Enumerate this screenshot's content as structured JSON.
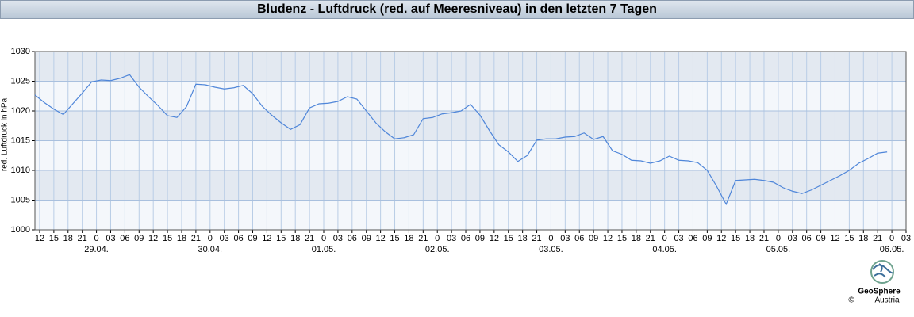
{
  "chart_data": {
    "type": "line",
    "title": "Bludenz - Luftdruck (red. auf Meeresniveau) in den letzten 7 Tagen",
    "ylabel": "red. Luftdruck in hPa",
    "logo": {
      "name": "GeoSphere",
      "sub": "Austria",
      "copyright": "©"
    },
    "color": "#4f86d9",
    "grid": true,
    "ylim": [
      1000,
      1030
    ],
    "yticks": [
      1000,
      1005,
      1010,
      1015,
      1020,
      1025,
      1030
    ],
    "xlim": [
      "28.04. 11",
      "06.05. 03"
    ],
    "xticks": [
      {
        "value": "28.04. 12",
        "label": "12"
      },
      {
        "value": "28.04. 15",
        "label": "15"
      },
      {
        "value": "28.04. 18",
        "label": "18"
      },
      {
        "value": "28.04. 21",
        "label": "21"
      },
      {
        "value": "29.04. 00",
        "label": "0"
      },
      {
        "value": "29.04. 03",
        "label": "03"
      },
      {
        "value": "29.04. 06",
        "label": "06"
      },
      {
        "value": "29.04. 09",
        "label": "09"
      },
      {
        "value": "29.04. 12",
        "label": "12"
      },
      {
        "value": "29.04. 15",
        "label": "15"
      },
      {
        "value": "29.04. 18",
        "label": "18"
      },
      {
        "value": "29.04. 21",
        "label": "21"
      },
      {
        "value": "30.04. 00",
        "label": "0"
      },
      {
        "value": "30.04. 03",
        "label": "03"
      },
      {
        "value": "30.04. 06",
        "label": "06"
      },
      {
        "value": "30.04. 09",
        "label": "09"
      },
      {
        "value": "30.04. 12",
        "label": "12"
      },
      {
        "value": "30.04. 15",
        "label": "15"
      },
      {
        "value": "30.04. 18",
        "label": "18"
      },
      {
        "value": "30.04. 21",
        "label": "21"
      },
      {
        "value": "01.05. 00",
        "label": "0"
      },
      {
        "value": "01.05. 03",
        "label": "03"
      },
      {
        "value": "01.05. 06",
        "label": "06"
      },
      {
        "value": "01.05. 09",
        "label": "09"
      },
      {
        "value": "01.05. 12",
        "label": "12"
      },
      {
        "value": "01.05. 15",
        "label": "15"
      },
      {
        "value": "01.05. 18",
        "label": "18"
      },
      {
        "value": "01.05. 21",
        "label": "21"
      },
      {
        "value": "02.05. 00",
        "label": "0"
      },
      {
        "value": "02.05. 03",
        "label": "03"
      },
      {
        "value": "02.05. 06",
        "label": "06"
      },
      {
        "value": "02.05. 09",
        "label": "09"
      },
      {
        "value": "02.05. 12",
        "label": "12"
      },
      {
        "value": "02.05. 15",
        "label": "15"
      },
      {
        "value": "02.05. 18",
        "label": "18"
      },
      {
        "value": "02.05. 21",
        "label": "21"
      },
      {
        "value": "03.05. 00",
        "label": "0"
      },
      {
        "value": "03.05. 03",
        "label": "03"
      },
      {
        "value": "03.05. 06",
        "label": "06"
      },
      {
        "value": "03.05. 09",
        "label": "09"
      },
      {
        "value": "03.05. 12",
        "label": "12"
      },
      {
        "value": "03.05. 15",
        "label": "15"
      },
      {
        "value": "03.05. 18",
        "label": "18"
      },
      {
        "value": "03.05. 21",
        "label": "21"
      },
      {
        "value": "04.05. 00",
        "label": "0"
      },
      {
        "value": "04.05. 03",
        "label": "03"
      },
      {
        "value": "04.05. 06",
        "label": "06"
      },
      {
        "value": "04.05. 09",
        "label": "09"
      },
      {
        "value": "04.05. 12",
        "label": "12"
      },
      {
        "value": "04.05. 15",
        "label": "15"
      },
      {
        "value": "04.05. 18",
        "label": "18"
      },
      {
        "value": "04.05. 21",
        "label": "21"
      },
      {
        "value": "05.05. 00",
        "label": "0"
      },
      {
        "value": "05.05. 03",
        "label": "03"
      },
      {
        "value": "05.05. 06",
        "label": "06"
      },
      {
        "value": "05.05. 09",
        "label": "09"
      },
      {
        "value": "05.05. 12",
        "label": "12"
      },
      {
        "value": "05.05. 15",
        "label": "15"
      },
      {
        "value": "05.05. 18",
        "label": "18"
      },
      {
        "value": "05.05. 21",
        "label": "21"
      },
      {
        "value": "06.05. 00",
        "label": "0"
      },
      {
        "value": "06.05. 03",
        "label": "03"
      }
    ],
    "date_labels": [
      {
        "value": "29.04. 00",
        "label": "29.04."
      },
      {
        "value": "30.04. 00",
        "label": "30.04."
      },
      {
        "value": "01.05. 00",
        "label": "01.05."
      },
      {
        "value": "02.05. 00",
        "label": "02.05."
      },
      {
        "value": "03.05. 00",
        "label": "03.05."
      },
      {
        "value": "04.05. 00",
        "label": "04.05."
      },
      {
        "value": "05.05. 00",
        "label": "05.05."
      },
      {
        "value": "06.05. 00",
        "label": "06.05."
      }
    ],
    "x": [
      "28.04. 11",
      "28.04. 13",
      "28.04. 15",
      "28.04. 17",
      "28.04. 19",
      "28.04. 21",
      "28.04. 23",
      "29.04. 01",
      "29.04. 03",
      "29.04. 05",
      "29.04. 07",
      "29.04. 09",
      "29.04. 11",
      "29.04. 13",
      "29.04. 15",
      "29.04. 17",
      "29.04. 19",
      "29.04. 21",
      "29.04. 23",
      "30.04. 01",
      "30.04. 03",
      "30.04. 05",
      "30.04. 07",
      "30.04. 09",
      "30.04. 11",
      "30.04. 13",
      "30.04. 15",
      "30.04. 17",
      "30.04. 19",
      "30.04. 21",
      "30.04. 23",
      "01.05. 01",
      "01.05. 03",
      "01.05. 05",
      "01.05. 07",
      "01.05. 09",
      "01.05. 11",
      "01.05. 13",
      "01.05. 15",
      "01.05. 17",
      "01.05. 19",
      "01.05. 21",
      "01.05. 23",
      "02.05. 01",
      "02.05. 03",
      "02.05. 05",
      "02.05. 07",
      "02.05. 09",
      "02.05. 11",
      "02.05. 13",
      "02.05. 15",
      "02.05. 17",
      "02.05. 19",
      "02.05. 21",
      "02.05. 23",
      "03.05. 01",
      "03.05. 03",
      "03.05. 05",
      "03.05. 07",
      "03.05. 09",
      "03.05. 11",
      "03.05. 13",
      "03.05. 15",
      "03.05. 17",
      "03.05. 19",
      "03.05. 21",
      "03.05. 23",
      "04.05. 01",
      "04.05. 03",
      "04.05. 05",
      "04.05. 07",
      "04.05. 09",
      "04.05. 11",
      "04.05. 13",
      "04.05. 15",
      "04.05. 17",
      "04.05. 19",
      "04.05. 21",
      "04.05. 23",
      "05.05. 01",
      "05.05. 03",
      "05.05. 05",
      "05.05. 07",
      "05.05. 09",
      "05.05. 11",
      "05.05. 13",
      "05.05. 15",
      "05.05. 17",
      "05.05. 19",
      "05.05. 21",
      "05.05. 23"
    ],
    "values": [
      1022.7,
      1021.4,
      1020.3,
      1019.4,
      1021.2,
      1023.0,
      1024.9,
      1025.2,
      1025.1,
      1025.5,
      1026.1,
      1024.0,
      1022.4,
      1020.9,
      1019.2,
      1018.9,
      1020.7,
      1024.5,
      1024.4,
      1024.0,
      1023.7,
      1023.9,
      1024.3,
      1022.9,
      1020.8,
      1019.3,
      1018.0,
      1016.9,
      1017.7,
      1020.5,
      1021.2,
      1021.3,
      1021.6,
      1022.4,
      1022.0,
      1020.0,
      1018.0,
      1016.5,
      1015.3,
      1015.5,
      1016.0,
      1018.7,
      1018.9,
      1019.5,
      1019.7,
      1020.0,
      1021.1,
      1019.3,
      1016.7,
      1014.3,
      1013.1,
      1011.5,
      1012.5,
      1015.1,
      1015.3,
      1015.3,
      1015.6,
      1015.7,
      1016.3,
      1015.2,
      1015.7,
      1013.3,
      1012.7,
      1011.7,
      1011.6,
      1011.2,
      1011.6,
      1012.4,
      1011.7,
      1011.6,
      1011.3,
      1010.0,
      1007.3,
      1004.3,
      1008.3,
      1008.4,
      1008.5,
      1008.3,
      1008.0,
      1007.1,
      1006.5,
      1006.1,
      1006.7,
      1007.5,
      1008.3,
      1009.1,
      1010.0,
      1011.2,
      1012.0,
      1012.9,
      1013.1
    ]
  }
}
